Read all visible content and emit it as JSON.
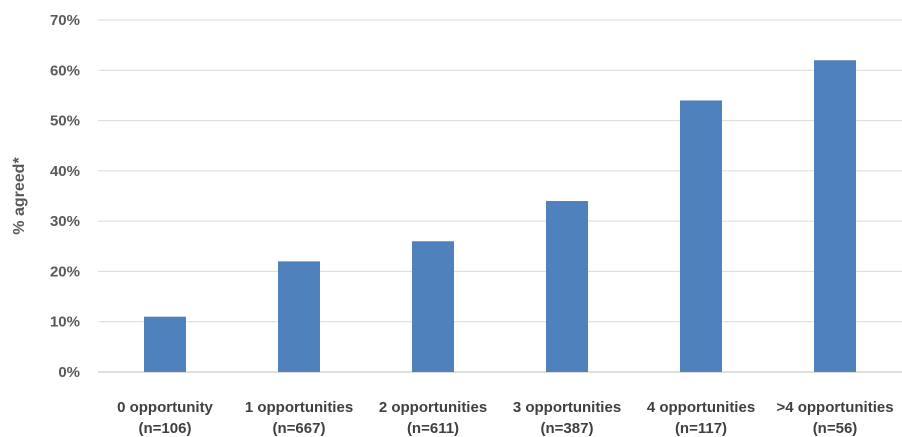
{
  "chart_data": {
    "type": "bar",
    "title": "",
    "xlabel": "",
    "ylabel": "% agreed*",
    "ylim": [
      0,
      70
    ],
    "y_ticks": [
      "0%",
      "10%",
      "20%",
      "30%",
      "40%",
      "50%",
      "60%",
      "70%"
    ],
    "y_tick_values": [
      0,
      10,
      20,
      30,
      40,
      50,
      60,
      70
    ],
    "grid": true,
    "legend": "none",
    "bar_color": "#4f81bd",
    "categories": [
      [
        "0 opportunity",
        "(n=106)"
      ],
      [
        "1 opportunities",
        "(n=667)"
      ],
      [
        "2 opportunities",
        "(n=611)"
      ],
      [
        "3 opportunities",
        "(n=387)"
      ],
      [
        "4 opportunities",
        "(n=117)"
      ],
      [
        ">4 opportunities",
        "(n=56)"
      ]
    ],
    "values": [
      11,
      22,
      26,
      34,
      54,
      62
    ]
  }
}
